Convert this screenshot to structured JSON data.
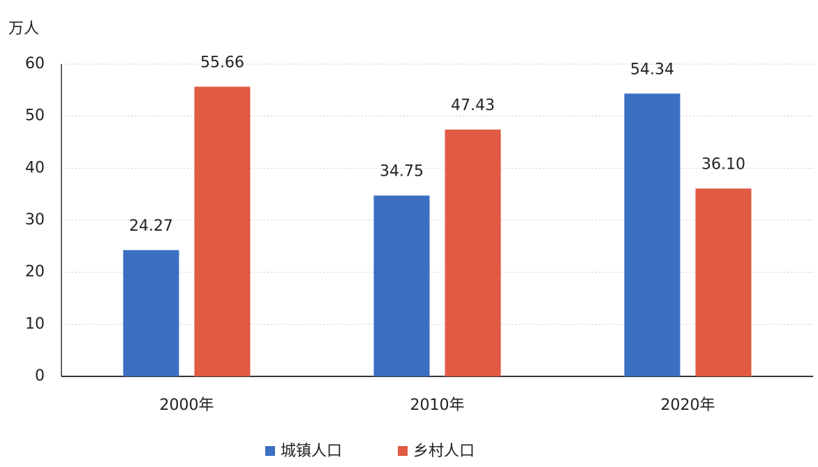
{
  "chart_data": {
    "type": "bar",
    "y_label": "万人",
    "categories": [
      "2000年",
      "2010年",
      "2020年"
    ],
    "series": [
      {
        "name": "城镇人口",
        "color": "#3b6fc2",
        "values": [
          24.27,
          34.75,
          54.34
        ],
        "value_labels": [
          "24.27",
          "34.75",
          "54.34"
        ]
      },
      {
        "name": "乡村人口",
        "color": "#e05a44",
        "values": [
          55.66,
          47.43,
          36.1
        ],
        "value_labels": [
          "55.66",
          "47.43",
          "36.10"
        ]
      }
    ],
    "ylim": [
      0,
      60
    ],
    "yticks": [
      0,
      10,
      20,
      30,
      40,
      50,
      60
    ],
    "grid": true,
    "legend": "bottom"
  }
}
